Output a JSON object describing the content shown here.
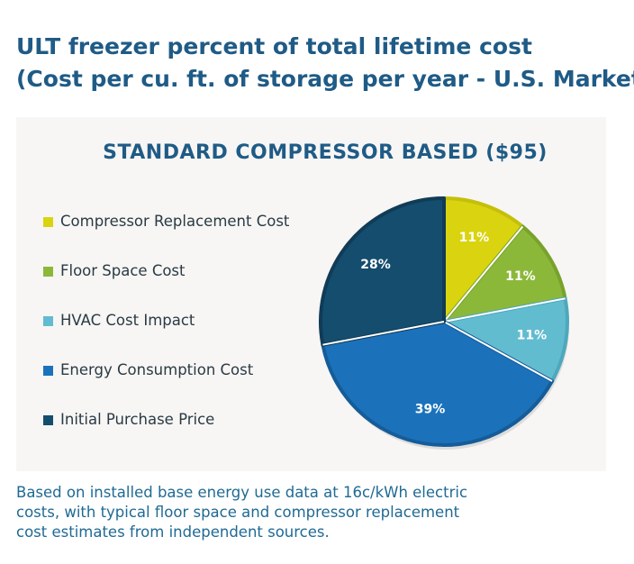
{
  "title": {
    "line1": "ULT freezer percent of total lifetime cost",
    "line2": "(Cost per cu. ft. of storage per year - U.S. Market)"
  },
  "footnote": {
    "line1": "Based on installed base energy use data at 16c/kWh electric",
    "line2": "costs, with typical floor space and compressor replacement",
    "line3": "cost estimates from independent sources."
  },
  "colors": {
    "title": "#1f5b86",
    "footnote": "#1f6a94",
    "panel": "#f7f6f4"
  },
  "chart_data": {
    "type": "pie",
    "title": "STANDARD COMPRESSOR BASED ($95)",
    "start_angle_deg": 0,
    "direction": "clockwise",
    "legend_position": "left",
    "slices": [
      {
        "label": "Compressor Replacement Cost",
        "value": 11,
        "display": "11%",
        "color": "#d9d40f",
        "edge": "#c4bf0b",
        "text_color": "#ffffff"
      },
      {
        "label": "Floor Space Cost",
        "value": 11,
        "display": "11%",
        "color": "#8cb83a",
        "edge": "#78a22c",
        "text_color": "#ffffff"
      },
      {
        "label": "HVAC Cost Impact",
        "value": 11,
        "display": "11%",
        "color": "#62bcd0",
        "edge": "#4ea8bd",
        "text_color": "#ffffff"
      },
      {
        "label": "Energy Consumption Cost",
        "value": 39,
        "display": "39%",
        "color": "#1b72bb",
        "edge": "#155c99",
        "text_color": "#ffffff"
      },
      {
        "label": "Initial Purchase Price",
        "value": 28,
        "display": "28%",
        "color": "#154d6e",
        "edge": "#103c57",
        "text_color": "#ffffff"
      }
    ]
  }
}
